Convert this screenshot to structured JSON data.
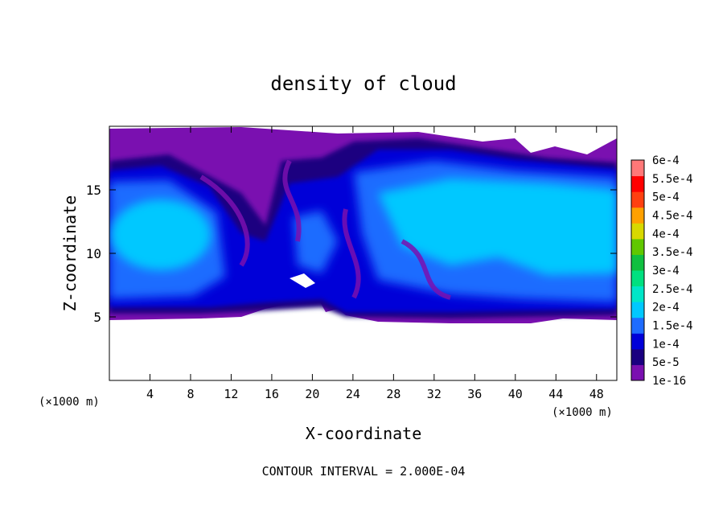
{
  "chart_data": {
    "type": "heatmap",
    "title": "density of cloud",
    "xlabel": "X-coordinate",
    "ylabel": "Z-coordinate",
    "x_unit": "(×1000 m)",
    "y_unit": "(×1000 m)",
    "xlim": [
      0,
      50
    ],
    "ylim": [
      0,
      20
    ],
    "x_ticks": [
      4,
      8,
      12,
      16,
      20,
      24,
      28,
      32,
      36,
      40,
      44,
      48
    ],
    "y_ticks": [
      5,
      10,
      15
    ],
    "footer": "CONTOUR INTERVAL = 2.000E-04",
    "grid": false,
    "colorbar": {
      "labels": [
        "1e-16",
        "5e-5",
        "1e-4",
        "1.5e-4",
        "2e-4",
        "2.5e-4",
        "3e-4",
        "3.5e-4",
        "4e-4",
        "4.5e-4",
        "5e-4",
        "5.5e-4",
        "6e-4"
      ],
      "colors": [
        "#7a10b0",
        "#1a0080",
        "#0000d8",
        "#1e6cff",
        "#00c8ff",
        "#00e6c8",
        "#00e080",
        "#10c040",
        "#60c800",
        "#d8d800",
        "#ffa000",
        "#ff4010",
        "#ff0000",
        "#ff7878"
      ]
    },
    "field_summary": {
      "cloud_base_z": 5,
      "cloud_top_z": 19,
      "core_density": 0.00018,
      "edge_density": 1e-16,
      "clear_below_z": 5
    }
  }
}
